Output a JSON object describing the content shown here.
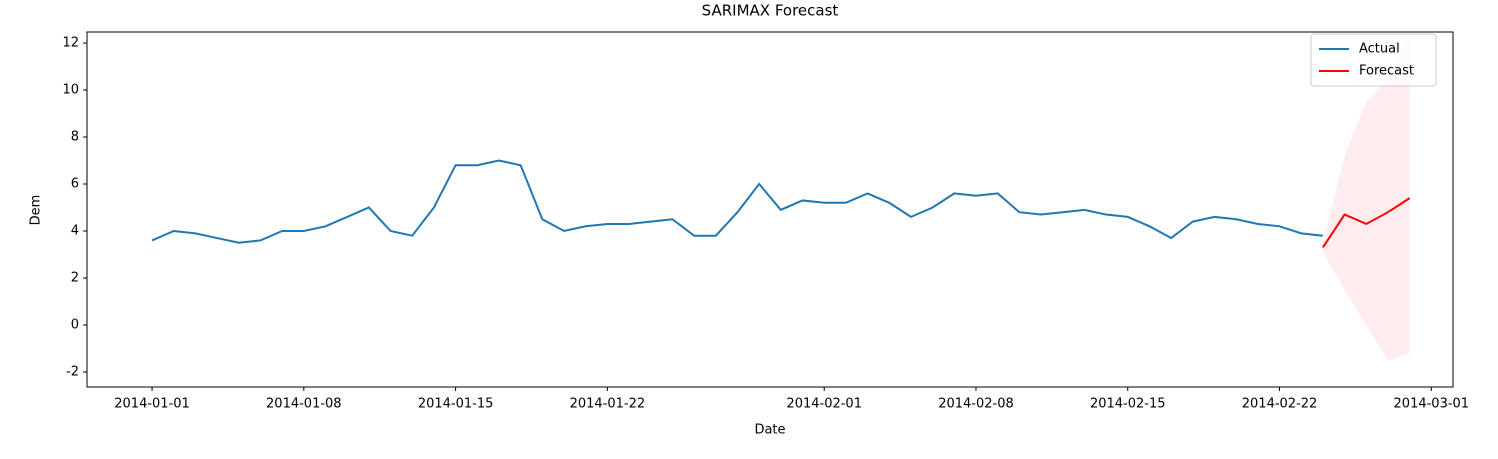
{
  "chart_data": {
    "type": "line",
    "title": "SARIMAX Forecast",
    "x_label": "Date",
    "y_label": "Dem",
    "xlim": [
      "2013-12-29",
      "2014-03-02"
    ],
    "xticks": [
      "2014-01-01",
      "2014-01-08",
      "2014-01-15",
      "2014-01-22",
      "2014-02-01",
      "2014-02-08",
      "2014-02-15",
      "2014-02-22",
      "2014-03-01"
    ],
    "ylim": [
      -2.64,
      12.47
    ],
    "yticks": [
      -2,
      0,
      2,
      4,
      6,
      8,
      10,
      12
    ],
    "legend": "upper right",
    "series": [
      {
        "name": "Actual",
        "color": "#1f77b4",
        "x": [
          "2014-01-01",
          "2014-01-02",
          "2014-01-03",
          "2014-01-04",
          "2014-01-05",
          "2014-01-06",
          "2014-01-07",
          "2014-01-08",
          "2014-01-09",
          "2014-01-10",
          "2014-01-11",
          "2014-01-12",
          "2014-01-13",
          "2014-01-14",
          "2014-01-15",
          "2014-01-16",
          "2014-01-17",
          "2014-01-18",
          "2014-01-19",
          "2014-01-20",
          "2014-01-21",
          "2014-01-22",
          "2014-01-23",
          "2014-01-24",
          "2014-01-25",
          "2014-01-26",
          "2014-01-27",
          "2014-01-28",
          "2014-01-29",
          "2014-01-30",
          "2014-01-31",
          "2014-02-01",
          "2014-02-02",
          "2014-02-03",
          "2014-02-04",
          "2014-02-05",
          "2014-02-06",
          "2014-02-07",
          "2014-02-08",
          "2014-02-09",
          "2014-02-10",
          "2014-02-11",
          "2014-02-12",
          "2014-02-13",
          "2014-02-14",
          "2014-02-15",
          "2014-02-16",
          "2014-02-17",
          "2014-02-18",
          "2014-02-19",
          "2014-02-20",
          "2014-02-21",
          "2014-02-22",
          "2014-02-23",
          "2014-02-24"
        ],
        "values": [
          3.6,
          4.0,
          3.9,
          3.7,
          3.5,
          3.6,
          4.0,
          4.0,
          4.2,
          4.6,
          5.0,
          4.0,
          3.8,
          5.0,
          6.8,
          6.8,
          7.0,
          6.8,
          4.5,
          4.0,
          4.2,
          4.3,
          4.3,
          4.4,
          4.5,
          3.8,
          3.8,
          4.8,
          6.0,
          4.9,
          5.3,
          5.2,
          5.2,
          5.6,
          5.2,
          4.6,
          5.0,
          5.6,
          5.5,
          5.6,
          4.8,
          4.7,
          4.8,
          4.9,
          4.7,
          4.6,
          4.2,
          3.7,
          4.4,
          4.6,
          4.5,
          4.3,
          4.2,
          3.9,
          3.8
        ]
      },
      {
        "name": "Forecast",
        "color": "#ff0000",
        "x": [
          "2014-02-24",
          "2014-02-25",
          "2014-02-26",
          "2014-02-27",
          "2014-02-28"
        ],
        "values": [
          3.3,
          4.7,
          4.3,
          4.8,
          5.4
        ],
        "lower": [
          3.1,
          1.5,
          0,
          -1.5,
          -1.2
        ],
        "upper": [
          3.5,
          7.2,
          9.5,
          10.5,
          12.5
        ],
        "band_color": "#ffc0cb"
      }
    ]
  }
}
